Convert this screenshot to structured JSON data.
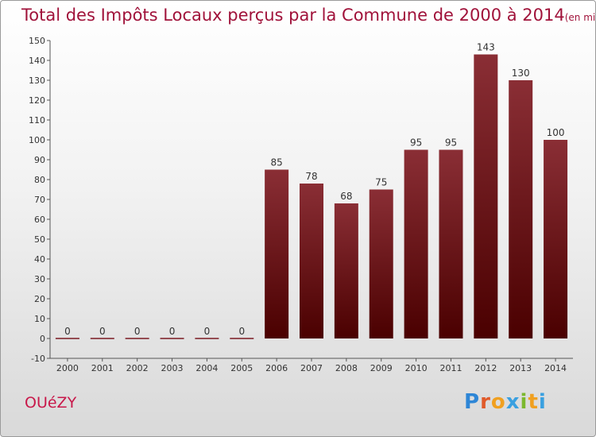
{
  "title": "Total des Impôts Locaux perçus par la Commune de 2000 à 2014",
  "title_unit": "(en milliers d'€)",
  "commune": "OUéZY",
  "logo_letters": [
    "P",
    "r",
    "o",
    "x",
    "i",
    "t",
    "i"
  ],
  "colors": {
    "bar_top": "#8a2e35",
    "bar_bottom": "#4a0000",
    "title": "#a0123a"
  },
  "chart_data": {
    "type": "bar",
    "title": "Total des Impôts Locaux perçus par la Commune de 2000 à 2014",
    "xlabel": "",
    "ylabel": "",
    "categories": [
      "2000",
      "2001",
      "2002",
      "2003",
      "2004",
      "2005",
      "2006",
      "2007",
      "2008",
      "2009",
      "2010",
      "2011",
      "2012",
      "2013",
      "2014"
    ],
    "values": [
      0,
      0,
      0,
      0,
      0,
      0,
      85,
      78,
      68,
      75,
      95,
      95,
      143,
      130,
      100
    ],
    "ylim": [
      -10,
      150
    ],
    "yticks": [
      -10,
      0,
      10,
      20,
      30,
      40,
      50,
      60,
      70,
      80,
      90,
      100,
      110,
      120,
      130,
      140,
      150
    ],
    "grid": false
  }
}
